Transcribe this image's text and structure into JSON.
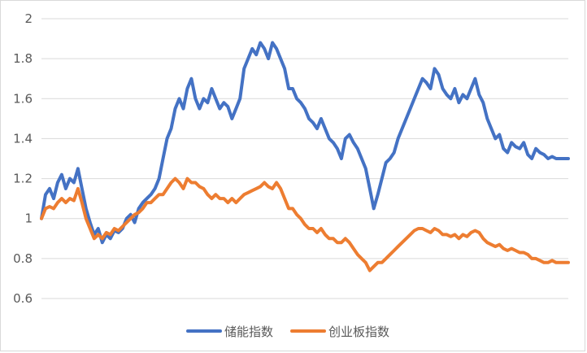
{
  "chart_data": {
    "type": "line",
    "title": "",
    "xlabel": "",
    "ylabel": "",
    "ylim": [
      0.6,
      2.0
    ],
    "yticks": [
      0.6,
      0.8,
      1,
      1.2,
      1.4,
      1.6,
      1.8,
      2
    ],
    "ytick_labels": [
      "0.6",
      "0.8",
      "1",
      "1.2",
      "1.4",
      "1.6",
      "1.8",
      "2"
    ],
    "grid": "horizontal",
    "legend_position": "bottom",
    "x": [
      0,
      5,
      10,
      15,
      20,
      25,
      30,
      35,
      40,
      45,
      50,
      55,
      60,
      65,
      70,
      75,
      80,
      85,
      90,
      95,
      100,
      105,
      110,
      115,
      120,
      125,
      130,
      135,
      140,
      145,
      150,
      155,
      160,
      165,
      170,
      175,
      180,
      185,
      190,
      195,
      200,
      205,
      210,
      215,
      220,
      225,
      230,
      235,
      240,
      245,
      250,
      255,
      260,
      265,
      270,
      275,
      280,
      285,
      290,
      295,
      300,
      305,
      310,
      315,
      320,
      325,
      330,
      335,
      340,
      345,
      350,
      355,
      360,
      365,
      370,
      375,
      380,
      385,
      390,
      395,
      400,
      405,
      410,
      415,
      420,
      425,
      430,
      435,
      440,
      445,
      450,
      455,
      460,
      465,
      470,
      475,
      480,
      485,
      490,
      495,
      500,
      505,
      510,
      515,
      520,
      525,
      530,
      535,
      540,
      545,
      550,
      555,
      560,
      565,
      570,
      575,
      580,
      585,
      590,
      595,
      600,
      605,
      610,
      615,
      620,
      625,
      630,
      635,
      640,
      645,
      650
    ],
    "series": [
      {
        "name": "储能指数",
        "color": "#4472C4",
        "values": [
          1.0,
          1.12,
          1.15,
          1.1,
          1.18,
          1.22,
          1.15,
          1.2,
          1.18,
          1.25,
          1.15,
          1.05,
          0.98,
          0.92,
          0.95,
          0.88,
          0.92,
          0.9,
          0.94,
          0.93,
          0.95,
          1.0,
          1.02,
          0.98,
          1.05,
          1.08,
          1.1,
          1.12,
          1.15,
          1.2,
          1.3,
          1.4,
          1.45,
          1.55,
          1.6,
          1.55,
          1.65,
          1.7,
          1.6,
          1.55,
          1.6,
          1.58,
          1.65,
          1.6,
          1.55,
          1.58,
          1.56,
          1.5,
          1.55,
          1.6,
          1.75,
          1.8,
          1.85,
          1.82,
          1.88,
          1.85,
          1.8,
          1.88,
          1.85,
          1.8,
          1.75,
          1.65,
          1.65,
          1.6,
          1.58,
          1.55,
          1.5,
          1.48,
          1.45,
          1.5,
          1.45,
          1.4,
          1.38,
          1.35,
          1.3,
          1.4,
          1.42,
          1.38,
          1.35,
          1.3,
          1.25,
          1.15,
          1.05,
          1.12,
          1.2,
          1.28,
          1.3,
          1.33,
          1.4,
          1.45,
          1.5,
          1.55,
          1.6,
          1.65,
          1.7,
          1.68,
          1.65,
          1.75,
          1.72,
          1.65,
          1.62,
          1.6,
          1.65,
          1.58,
          1.62,
          1.6,
          1.65,
          1.7,
          1.62,
          1.58,
          1.5,
          1.45,
          1.4,
          1.42,
          1.35,
          1.33,
          1.38,
          1.36,
          1.35,
          1.38,
          1.32,
          1.3,
          1.35,
          1.33,
          1.32,
          1.3,
          1.31,
          1.3,
          1.3,
          1.3,
          1.3
        ]
      },
      {
        "name": "创业板指数",
        "color": "#ED7D31",
        "values": [
          1.0,
          1.05,
          1.06,
          1.05,
          1.08,
          1.1,
          1.08,
          1.1,
          1.09,
          1.15,
          1.08,
          1.0,
          0.95,
          0.9,
          0.92,
          0.9,
          0.93,
          0.92,
          0.95,
          0.94,
          0.96,
          0.98,
          1.0,
          1.02,
          1.03,
          1.05,
          1.08,
          1.08,
          1.1,
          1.12,
          1.12,
          1.15,
          1.18,
          1.2,
          1.18,
          1.15,
          1.2,
          1.18,
          1.18,
          1.16,
          1.15,
          1.12,
          1.1,
          1.12,
          1.1,
          1.1,
          1.08,
          1.1,
          1.08,
          1.1,
          1.12,
          1.13,
          1.14,
          1.15,
          1.16,
          1.18,
          1.16,
          1.15,
          1.18,
          1.15,
          1.1,
          1.05,
          1.05,
          1.02,
          1.0,
          0.97,
          0.95,
          0.95,
          0.93,
          0.95,
          0.92,
          0.9,
          0.9,
          0.88,
          0.88,
          0.9,
          0.88,
          0.85,
          0.82,
          0.8,
          0.78,
          0.74,
          0.76,
          0.78,
          0.78,
          0.8,
          0.82,
          0.84,
          0.86,
          0.88,
          0.9,
          0.92,
          0.94,
          0.95,
          0.95,
          0.94,
          0.93,
          0.95,
          0.94,
          0.92,
          0.92,
          0.91,
          0.92,
          0.9,
          0.92,
          0.91,
          0.93,
          0.94,
          0.93,
          0.9,
          0.88,
          0.87,
          0.86,
          0.87,
          0.85,
          0.84,
          0.85,
          0.84,
          0.83,
          0.83,
          0.82,
          0.8,
          0.8,
          0.79,
          0.78,
          0.78,
          0.79,
          0.78,
          0.78,
          0.78,
          0.78
        ]
      }
    ]
  }
}
